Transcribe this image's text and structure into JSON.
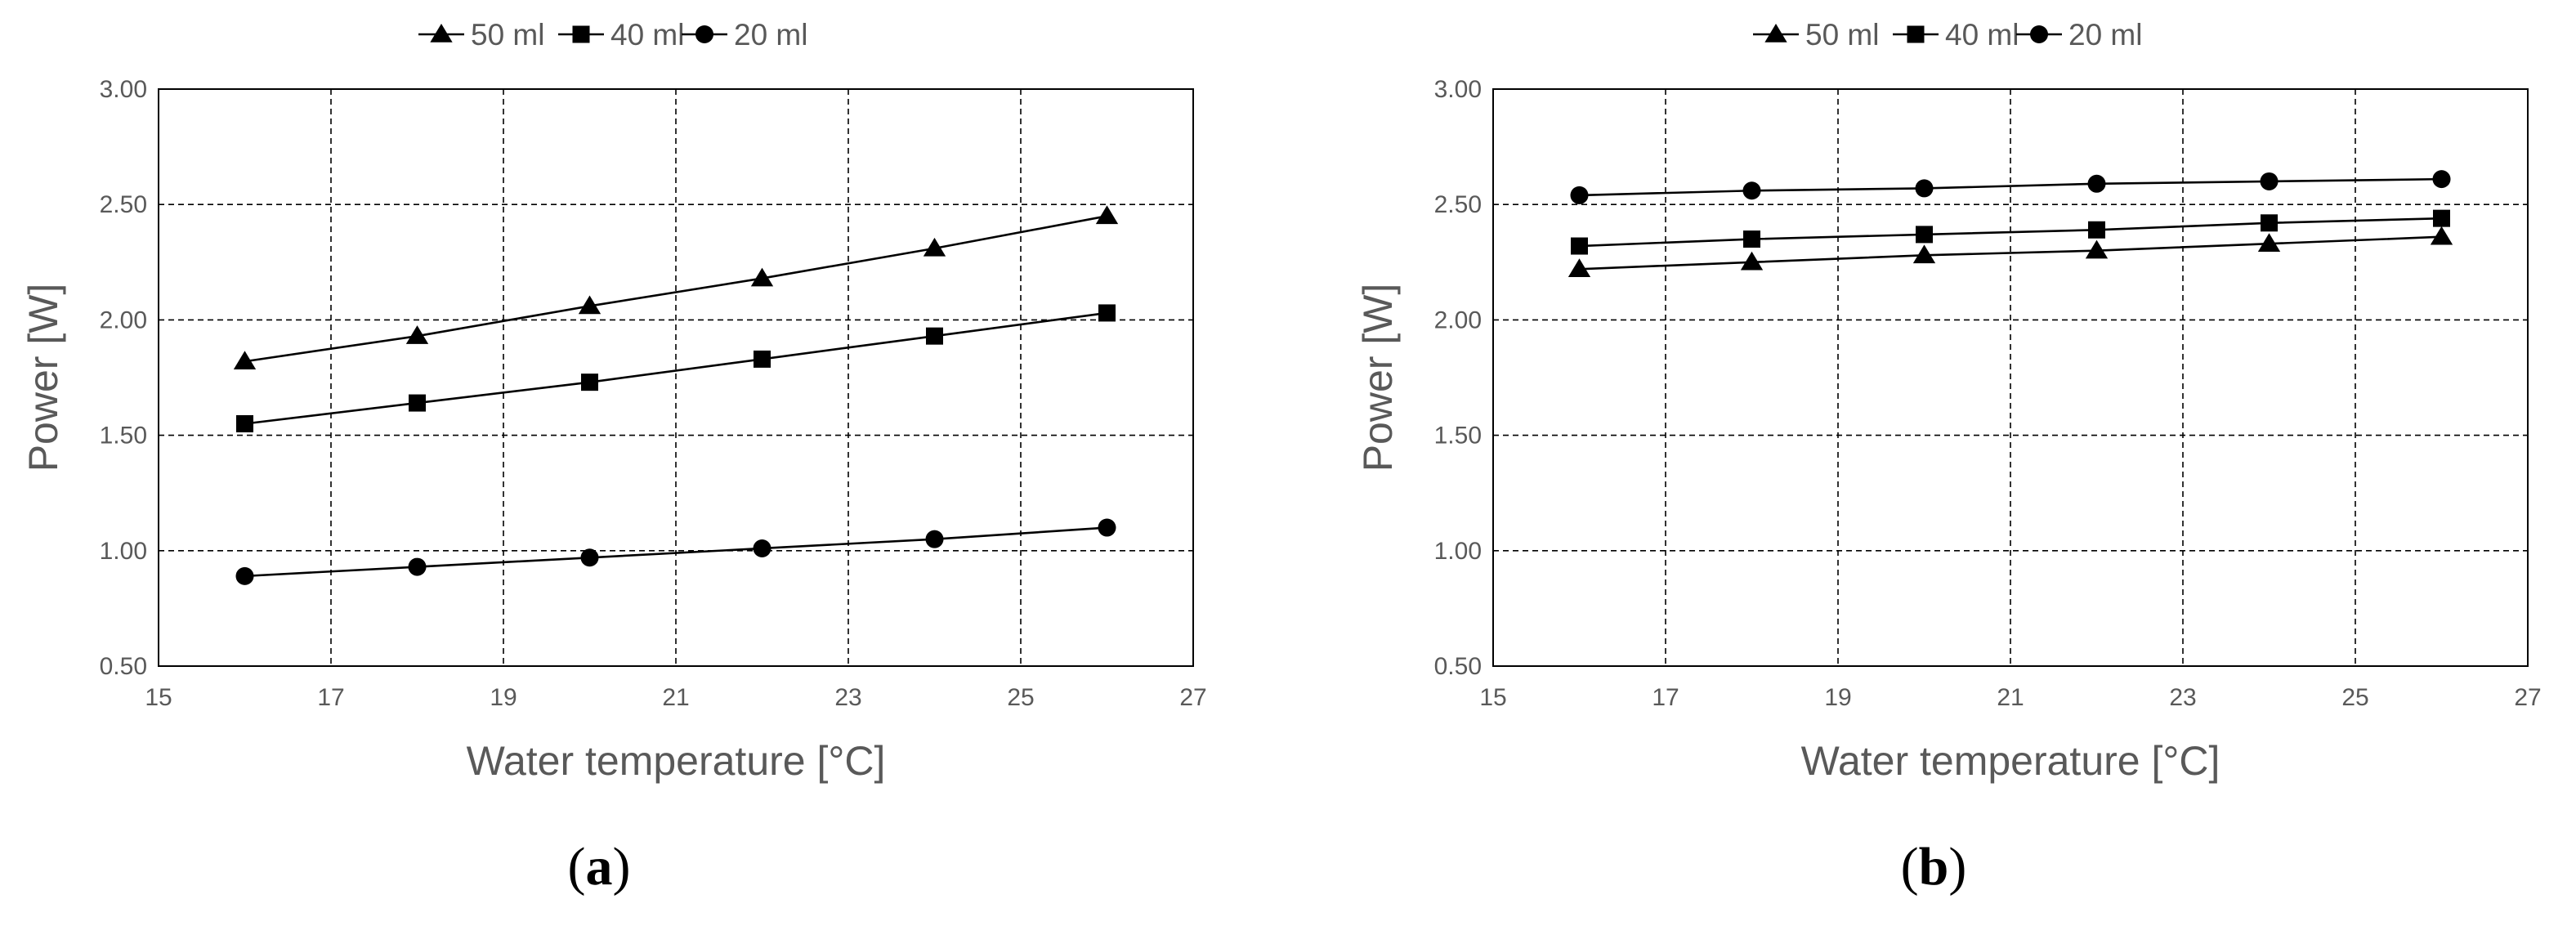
{
  "colors": {
    "series": "#000000",
    "text": "#595959",
    "grid": "#000000",
    "background": "#ffffff"
  },
  "panels": [
    {
      "label_open": "(",
      "label_letter": "a",
      "label_close": ")"
    },
    {
      "label_open": "(",
      "label_letter": "b",
      "label_close": ")"
    }
  ],
  "chart_data": [
    {
      "type": "line",
      "title": "",
      "xlabel": "Water temperature [°C]",
      "ylabel": "Power [W]",
      "xlim": [
        15,
        27
      ],
      "ylim": [
        0.5,
        3.0
      ],
      "x_ticks": [
        15,
        17,
        19,
        21,
        23,
        25,
        27
      ],
      "x_tick_labels": [
        "15",
        "17",
        "19",
        "21",
        "23",
        "25",
        "27"
      ],
      "y_ticks": [
        0.5,
        1.0,
        1.5,
        2.0,
        2.5,
        3.0
      ],
      "y_tick_labels": [
        "0.50",
        "1.00",
        "1.50",
        "2.00",
        "2.50",
        "3.00"
      ],
      "grid": true,
      "legend_position": "top-center",
      "x": [
        16,
        18,
        20,
        22,
        24,
        26
      ],
      "series": [
        {
          "name": "50 ml",
          "marker": "triangle",
          "values": [
            1.82,
            1.93,
            2.06,
            2.18,
            2.31,
            2.45
          ]
        },
        {
          "name": "40 ml",
          "marker": "square",
          "values": [
            1.55,
            1.64,
            1.73,
            1.83,
            1.93,
            2.03
          ]
        },
        {
          "name": "20 ml",
          "marker": "circle",
          "values": [
            0.89,
            0.93,
            0.97,
            1.01,
            1.05,
            1.1
          ]
        }
      ]
    },
    {
      "type": "line",
      "title": "",
      "xlabel": "Water temperature [°C]",
      "ylabel": "Power [W]",
      "xlim": [
        15,
        27
      ],
      "ylim": [
        0.5,
        3.0
      ],
      "x_ticks": [
        15,
        17,
        19,
        21,
        23,
        25,
        27
      ],
      "x_tick_labels": [
        "15",
        "17",
        "19",
        "21",
        "23",
        "25",
        "27"
      ],
      "y_ticks": [
        0.5,
        1.0,
        1.5,
        2.0,
        2.5,
        3.0
      ],
      "y_tick_labels": [
        "0.50",
        "1.00",
        "1.50",
        "2.00",
        "2.50",
        "3.00"
      ],
      "grid": true,
      "legend_position": "top-center",
      "x": [
        16,
        18,
        20,
        22,
        24,
        26
      ],
      "series": [
        {
          "name": "50 ml",
          "marker": "triangle",
          "values": [
            2.22,
            2.25,
            2.28,
            2.3,
            2.33,
            2.36
          ]
        },
        {
          "name": "40 ml",
          "marker": "square",
          "values": [
            2.32,
            2.35,
            2.37,
            2.39,
            2.42,
            2.44
          ]
        },
        {
          "name": "20 ml",
          "marker": "circle",
          "values": [
            2.54,
            2.56,
            2.57,
            2.59,
            2.6,
            2.61
          ]
        }
      ]
    }
  ]
}
